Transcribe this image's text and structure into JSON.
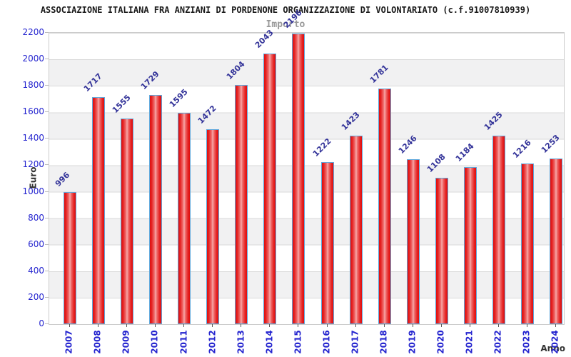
{
  "chart_data": {
    "type": "bar",
    "title": "ASSOCIAZIONE ITALIANA FRA ANZIANI DI PORDENONE ORGANIZZAZIONE DI VOLONTARIATO (c.f.91007810939)",
    "subtitle": "Importo",
    "xlabel": "Anno",
    "ylabel": "Euro",
    "categories": [
      "2007",
      "2008",
      "2009",
      "2010",
      "2011",
      "2012",
      "2013",
      "2014",
      "2015",
      "2016",
      "2017",
      "2018",
      "2019",
      "2020",
      "2021",
      "2022",
      "2023",
      "2024"
    ],
    "values": [
      996,
      1717,
      1555,
      1729,
      1595,
      1472,
      1804,
      2043,
      2196,
      1222,
      1423,
      1781,
      1246,
      1108,
      1184,
      1425,
      1216,
      1253
    ],
    "ylim": [
      0,
      2200
    ],
    "ytick_step": 200,
    "yticks": [
      0,
      200,
      400,
      600,
      800,
      1000,
      1200,
      1400,
      1600,
      1800,
      2000,
      2200
    ],
    "legend": "none",
    "grid": "horizontal gridlines with alternating gray bands every 200",
    "bar_label_rotation_deg": -45,
    "x_label_rotation_deg": -90,
    "colors": {
      "bar_edge": "#de0f0f",
      "bar_center": "#f8abab",
      "bar_border": "#5fa8dc",
      "tick_label": "#2424cf",
      "value_label": "#333399",
      "band": "#f1f1f2",
      "grid_line": "#d9d9d9",
      "plot_border": "#cccccc",
      "title": "#1a1a1a",
      "subtitle": "#999999",
      "axis_title": "#333333"
    }
  }
}
